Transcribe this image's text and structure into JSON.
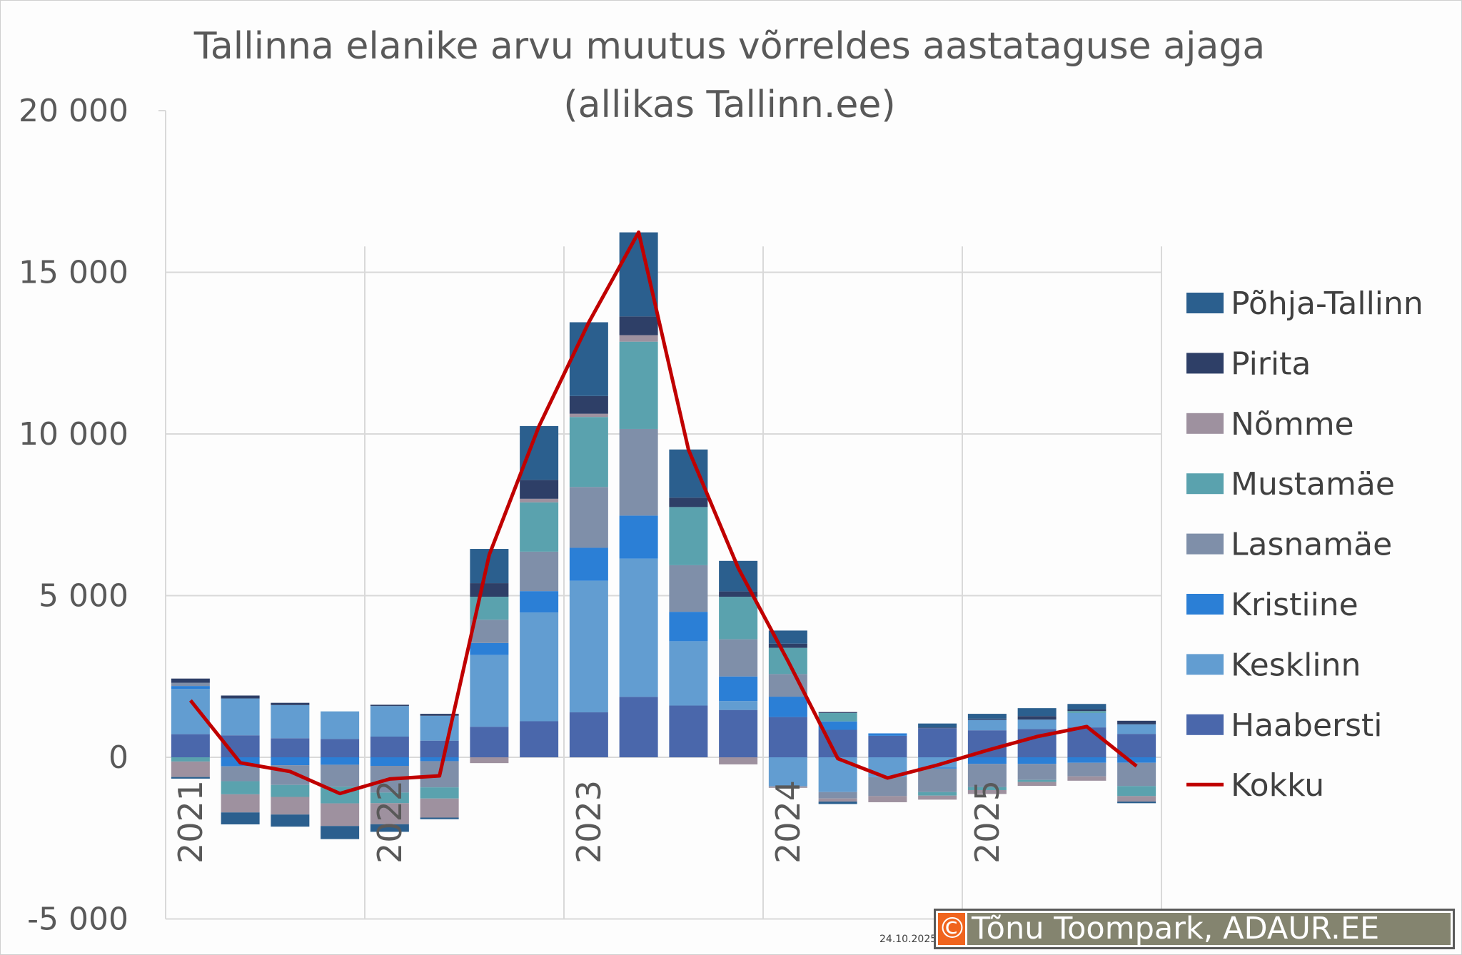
{
  "chart_data": {
    "type": "bar",
    "stacked": true,
    "title": [
      "Tallinna elanike arvu muutus võrreldes aastataguse ajaga",
      "(allikas Tallinn.ee)"
    ],
    "xlabel": "",
    "ylabel": "",
    "ylim": [
      -5000,
      20000
    ],
    "yticks": [
      20000,
      15000,
      10000,
      5000,
      0,
      -5000
    ],
    "ytick_labels": [
      "20 000",
      "15 000",
      "10 000",
      "5 000",
      "0",
      "-5 000"
    ],
    "categories": [
      "2021 Q1",
      "2021 Q2",
      "2021 Q3",
      "2021 Q4",
      "2022 Q1",
      "2022 Q2",
      "2022 Q3",
      "2022 Q4",
      "2023 Q1",
      "2023 Q2",
      "2023 Q3",
      "2023 Q4",
      "2024 Q1",
      "2024 Q2",
      "2024 Q3",
      "2024 Q4",
      "2025 Q1",
      "2025 Q2",
      "2025 Q3",
      "2025 Q4"
    ],
    "xtick_labels": [
      {
        "index": 0,
        "label": "2021"
      },
      {
        "index": 4,
        "label": "2022"
      },
      {
        "index": 8,
        "label": "2023"
      },
      {
        "index": 12,
        "label": "2024"
      },
      {
        "index": 16,
        "label": "2025"
      }
    ],
    "grid": true,
    "legend_position": "right",
    "series": [
      {
        "name": "Haabersti",
        "color": "#4a67ab",
        "values": [
          715,
          680,
          590,
          570,
          640,
          515,
          945,
          1115,
          1390,
          1870,
          1600,
          1465,
          1245,
          850,
          665,
          900,
          835,
          875,
          925,
          725
        ]
      },
      {
        "name": "Kesklinn",
        "color": "#629dd1",
        "values": [
          1400,
          1140,
          1025,
          850,
          945,
          770,
          2220,
          3365,
          4070,
          4275,
          1990,
          275,
          -900,
          -1075,
          -615,
          -320,
          325,
          290,
          445,
          295
        ]
      },
      {
        "name": "Kristiine",
        "color": "#2b7fd6",
        "values": [
          90,
          -280,
          -245,
          -230,
          -265,
          -120,
          370,
          660,
          1020,
          1330,
          910,
          760,
          630,
          260,
          75,
          -30,
          -205,
          -205,
          -170,
          -170
        ]
      },
      {
        "name": "Lasnamäe",
        "color": "#7f8fa9",
        "values": [
          100,
          -460,
          -610,
          -680,
          -825,
          -810,
          720,
          1220,
          1880,
          2680,
          1440,
          1150,
          700,
          -200,
          -585,
          -725,
          -720,
          -495,
          -420,
          -720
        ]
      },
      {
        "name": "Mustamäe",
        "color": "#5aa2ae",
        "values": [
          -130,
          -405,
          -370,
          -515,
          -330,
          -345,
          710,
          1525,
          2165,
          2700,
          1800,
          1315,
          810,
          260,
          0,
          -110,
          -90,
          -60,
          60,
          -310
        ]
      },
      {
        "name": "Nõmme",
        "color": "#9e919f",
        "values": [
          -480,
          -560,
          -545,
          -700,
          -650,
          -590,
          -180,
          110,
          100,
          200,
          0,
          -220,
          -45,
          -95,
          -190,
          -125,
          -120,
          -125,
          -135,
          -170
        ]
      },
      {
        "name": "Pirita",
        "color": "#2e3f67",
        "values": [
          130,
          90,
          70,
          0,
          40,
          60,
          420,
          585,
          550,
          580,
          290,
          165,
          130,
          30,
          0,
          20,
          35,
          110,
          50,
          110
        ]
      },
      {
        "name": "Põhja-Tallinn",
        "color": "#2b5f8e",
        "values": [
          -50,
          -370,
          -375,
          -405,
          -235,
          -50,
          1060,
          1665,
          2280,
          2600,
          1490,
          945,
          405,
          -75,
          0,
          125,
          150,
          245,
          170,
          -50
        ]
      }
    ],
    "line_series": {
      "name": "Kokku",
      "color": "#c00000",
      "values": [
        1760,
        -170,
        -440,
        -1120,
        -670,
        -575,
        6265,
        10245,
        13455,
        16240,
        9520,
        5855,
        2975,
        -40,
        -640,
        -240,
        215,
        640,
        950,
        -275
      ]
    },
    "legend_order": [
      "Põhja-Tallinn",
      "Pirita",
      "Nõmme",
      "Mustamäe",
      "Lasnamäe",
      "Kristiine",
      "Kesklinn",
      "Haabersti",
      "Kokku"
    ]
  },
  "footer": {
    "date": "24.10.2025",
    "copyright_symbol": "©",
    "copyright_text": "Tõnu Toompark, ADAUR.EE"
  }
}
